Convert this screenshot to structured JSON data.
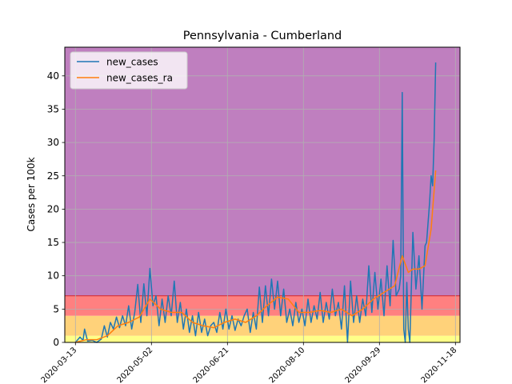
{
  "chart_data": {
    "type": "line",
    "title": "Pennsylvania - Cumberland",
    "xlabel": "",
    "ylabel": "Cases per 100k",
    "ylim": [
      0,
      44.3
    ],
    "xlim": [
      "2020-03-06",
      "2020-11-21"
    ],
    "x_ticks": [
      "2020-03-13",
      "2020-05-02",
      "2020-06-21",
      "2020-08-10",
      "2020-09-29",
      "2020-11-18"
    ],
    "y_ticks": [
      0,
      5,
      10,
      15,
      20,
      25,
      30,
      35,
      40
    ],
    "grid": true,
    "legend": {
      "placement": "upper left",
      "entries": [
        "new_cases",
        "new_cases_ra"
      ]
    },
    "background_bands": [
      {
        "from": 0,
        "to": 1,
        "color": "#ffff88"
      },
      {
        "from": 1,
        "to": 4,
        "color": "#ffd27a"
      },
      {
        "from": 4,
        "to": 7,
        "color": "#ff8080"
      },
      {
        "from": 7,
        "to": 44.3,
        "color": "#bf7fbf"
      }
    ],
    "band_line": {
      "y": 7,
      "color": "#d62728"
    },
    "colors": {
      "new_cases": "#1f77b4",
      "new_cases_ra": "#ff7f0e"
    },
    "series": [
      {
        "name": "new_cases",
        "points": [
          [
            "2020-03-13",
            0.0
          ],
          [
            "2020-03-16",
            0.8
          ],
          [
            "2020-03-18",
            0.3
          ],
          [
            "2020-03-19",
            2.0
          ],
          [
            "2020-03-21",
            0.2
          ],
          [
            "2020-03-24",
            0.3
          ],
          [
            "2020-03-27",
            0.0
          ],
          [
            "2020-03-30",
            0.5
          ],
          [
            "2020-04-01",
            2.5
          ],
          [
            "2020-04-03",
            0.8
          ],
          [
            "2020-04-05",
            3.0
          ],
          [
            "2020-04-07",
            2.0
          ],
          [
            "2020-04-09",
            3.8
          ],
          [
            "2020-04-11",
            2.2
          ],
          [
            "2020-04-13",
            4.0
          ],
          [
            "2020-04-15",
            2.5
          ],
          [
            "2020-04-17",
            5.5
          ],
          [
            "2020-04-19",
            2.0
          ],
          [
            "2020-04-21",
            4.5
          ],
          [
            "2020-04-23",
            8.7
          ],
          [
            "2020-04-25",
            3.0
          ],
          [
            "2020-04-27",
            8.8
          ],
          [
            "2020-04-29",
            4.0
          ],
          [
            "2020-05-01",
            11.1
          ],
          [
            "2020-05-03",
            5.5
          ],
          [
            "2020-05-05",
            7.0
          ],
          [
            "2020-05-07",
            2.5
          ],
          [
            "2020-05-09",
            6.5
          ],
          [
            "2020-05-11",
            3.0
          ],
          [
            "2020-05-13",
            7.0
          ],
          [
            "2020-05-15",
            4.0
          ],
          [
            "2020-05-17",
            9.2
          ],
          [
            "2020-05-19",
            3.0
          ],
          [
            "2020-05-21",
            6.0
          ],
          [
            "2020-05-23",
            2.0
          ],
          [
            "2020-05-25",
            5.0
          ],
          [
            "2020-05-27",
            1.5
          ],
          [
            "2020-05-29",
            4.0
          ],
          [
            "2020-05-31",
            1.0
          ],
          [
            "2020-06-02",
            4.5
          ],
          [
            "2020-06-04",
            1.5
          ],
          [
            "2020-06-06",
            3.5
          ],
          [
            "2020-06-08",
            1.0
          ],
          [
            "2020-06-10",
            2.5
          ],
          [
            "2020-06-12",
            3.0
          ],
          [
            "2020-06-14",
            1.5
          ],
          [
            "2020-06-16",
            4.5
          ],
          [
            "2020-06-18",
            2.0
          ],
          [
            "2020-06-20",
            5.0
          ],
          [
            "2020-06-22",
            2.0
          ],
          [
            "2020-06-24",
            4.0
          ],
          [
            "2020-06-26",
            1.8
          ],
          [
            "2020-06-28",
            3.5
          ],
          [
            "2020-06-30",
            2.5
          ],
          [
            "2020-07-02",
            4.0
          ],
          [
            "2020-07-04",
            5.0
          ],
          [
            "2020-07-06",
            1.5
          ],
          [
            "2020-07-08",
            4.5
          ],
          [
            "2020-07-10",
            2.0
          ],
          [
            "2020-07-12",
            8.3
          ],
          [
            "2020-07-14",
            3.0
          ],
          [
            "2020-07-16",
            8.5
          ],
          [
            "2020-07-18",
            4.0
          ],
          [
            "2020-07-20",
            9.5
          ],
          [
            "2020-07-22",
            5.0
          ],
          [
            "2020-07-24",
            9.2
          ],
          [
            "2020-07-26",
            4.0
          ],
          [
            "2020-07-28",
            8.0
          ],
          [
            "2020-07-30",
            3.0
          ],
          [
            "2020-08-01",
            5.0
          ],
          [
            "2020-08-03",
            2.5
          ],
          [
            "2020-08-05",
            6.0
          ],
          [
            "2020-08-07",
            3.0
          ],
          [
            "2020-08-09",
            5.0
          ],
          [
            "2020-08-11",
            2.5
          ],
          [
            "2020-08-13",
            6.5
          ],
          [
            "2020-08-15",
            3.0
          ],
          [
            "2020-08-17",
            5.5
          ],
          [
            "2020-08-19",
            3.5
          ],
          [
            "2020-08-21",
            7.5
          ],
          [
            "2020-08-23",
            3.0
          ],
          [
            "2020-08-25",
            6.0
          ],
          [
            "2020-08-27",
            3.5
          ],
          [
            "2020-08-29",
            8.0
          ],
          [
            "2020-08-31",
            4.0
          ],
          [
            "2020-09-02",
            6.0
          ],
          [
            "2020-09-04",
            2.0
          ],
          [
            "2020-09-06",
            8.5
          ],
          [
            "2020-09-08",
            0.0
          ],
          [
            "2020-09-10",
            9.2
          ],
          [
            "2020-09-12",
            3.0
          ],
          [
            "2020-09-14",
            7.0
          ],
          [
            "2020-09-16",
            3.0
          ],
          [
            "2020-09-18",
            6.5
          ],
          [
            "2020-09-20",
            4.0
          ],
          [
            "2020-09-22",
            11.5
          ],
          [
            "2020-09-24",
            4.5
          ],
          [
            "2020-09-26",
            10.5
          ],
          [
            "2020-09-28",
            5.0
          ],
          [
            "2020-09-30",
            9.5
          ],
          [
            "2020-10-02",
            4.0
          ],
          [
            "2020-10-04",
            11.5
          ],
          [
            "2020-10-06",
            5.5
          ],
          [
            "2020-10-08",
            15.3
          ],
          [
            "2020-10-10",
            7.0
          ],
          [
            "2020-10-12",
            8.0
          ],
          [
            "2020-10-13",
            10.0
          ],
          [
            "2020-10-14",
            37.5
          ],
          [
            "2020-10-15",
            2.0
          ],
          [
            "2020-10-16",
            0.0
          ],
          [
            "2020-10-17",
            9.0
          ],
          [
            "2020-10-18",
            2.0
          ],
          [
            "2020-10-19",
            0.0
          ],
          [
            "2020-10-21",
            16.5
          ],
          [
            "2020-10-23",
            8.0
          ],
          [
            "2020-10-25",
            13.0
          ],
          [
            "2020-10-27",
            5.0
          ],
          [
            "2020-10-29",
            14.5
          ],
          [
            "2020-10-30",
            15.0
          ],
          [
            "2020-11-01",
            21.0
          ],
          [
            "2020-11-02",
            25.0
          ],
          [
            "2020-11-03",
            23.5
          ],
          [
            "2020-11-04",
            30.5
          ],
          [
            "2020-11-05",
            42.0
          ]
        ]
      },
      {
        "name": "new_cases_ra",
        "points": [
          [
            "2020-03-13",
            0.0
          ],
          [
            "2020-03-20",
            0.4
          ],
          [
            "2020-03-27",
            0.4
          ],
          [
            "2020-04-03",
            1.0
          ],
          [
            "2020-04-10",
            2.5
          ],
          [
            "2020-04-17",
            3.0
          ],
          [
            "2020-04-24",
            3.8
          ],
          [
            "2020-05-01",
            6.5
          ],
          [
            "2020-05-08",
            5.0
          ],
          [
            "2020-05-15",
            4.5
          ],
          [
            "2020-05-22",
            4.5
          ],
          [
            "2020-05-29",
            3.0
          ],
          [
            "2020-06-05",
            2.5
          ],
          [
            "2020-06-12",
            2.2
          ],
          [
            "2020-06-19",
            3.0
          ],
          [
            "2020-06-26",
            3.5
          ],
          [
            "2020-07-03",
            3.0
          ],
          [
            "2020-07-10",
            4.0
          ],
          [
            "2020-07-17",
            5.5
          ],
          [
            "2020-07-24",
            6.8
          ],
          [
            "2020-07-31",
            6.5
          ],
          [
            "2020-08-07",
            4.5
          ],
          [
            "2020-08-14",
            4.5
          ],
          [
            "2020-08-21",
            4.8
          ],
          [
            "2020-08-28",
            4.5
          ],
          [
            "2020-09-04",
            5.0
          ],
          [
            "2020-09-11",
            4.0
          ],
          [
            "2020-09-18",
            5.0
          ],
          [
            "2020-09-25",
            6.5
          ],
          [
            "2020-10-02",
            7.5
          ],
          [
            "2020-10-09",
            8.5
          ],
          [
            "2020-10-14",
            13.0
          ],
          [
            "2020-10-18",
            10.5
          ],
          [
            "2020-10-21",
            11.0
          ],
          [
            "2020-10-25",
            11.0
          ],
          [
            "2020-10-29",
            11.5
          ],
          [
            "2020-11-02",
            17.0
          ],
          [
            "2020-11-05",
            25.8
          ]
        ]
      }
    ]
  }
}
